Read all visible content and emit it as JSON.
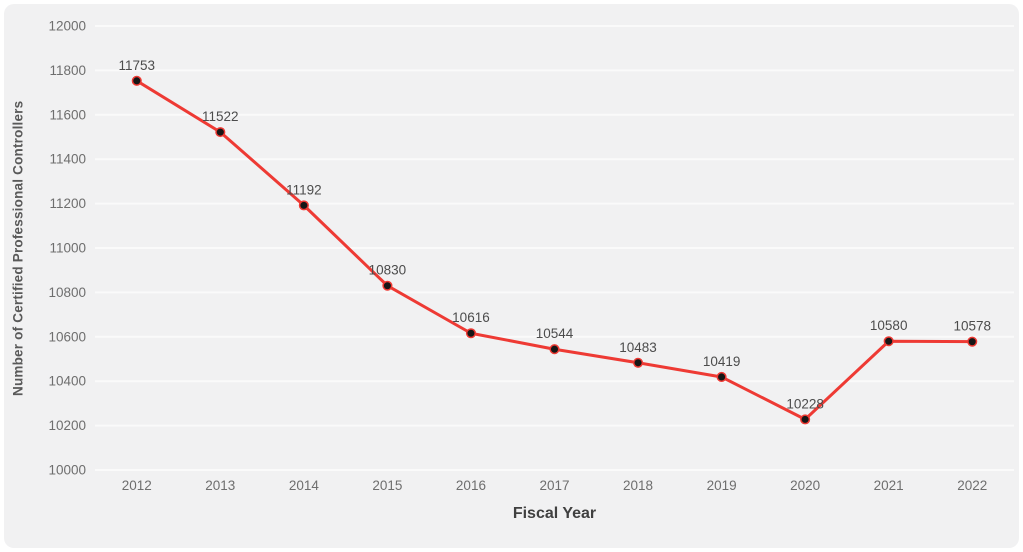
{
  "chart_data": {
    "type": "line",
    "title": "",
    "xlabel": "Fiscal Year",
    "ylabel": "Number of Certified Professional Controllers",
    "categories": [
      "2012",
      "2013",
      "2014",
      "2015",
      "2016",
      "2017",
      "2018",
      "2019",
      "2020",
      "2021",
      "2022"
    ],
    "values": [
      11753,
      11522,
      11192,
      10830,
      10616,
      10544,
      10483,
      10419,
      10228,
      10580,
      10578
    ],
    "ylim": [
      10000,
      12000
    ],
    "y_tick_step": 200,
    "y_ticks": [
      10000,
      10200,
      10400,
      10600,
      10800,
      11000,
      11200,
      11400,
      11600,
      11800,
      12000
    ],
    "grid": true,
    "legend": "none",
    "data_labels": true,
    "colors": {
      "panel_background": "#f1f1f2",
      "gridline": "#fafafa",
      "line": "#ee3a34",
      "marker_fill": "#161616",
      "marker_stroke": "#ee3a34",
      "tick_label": "#6e6e6e",
      "data_label": "#4c4c4c",
      "axis_title": "#595959",
      "x_title": "#404040"
    }
  }
}
